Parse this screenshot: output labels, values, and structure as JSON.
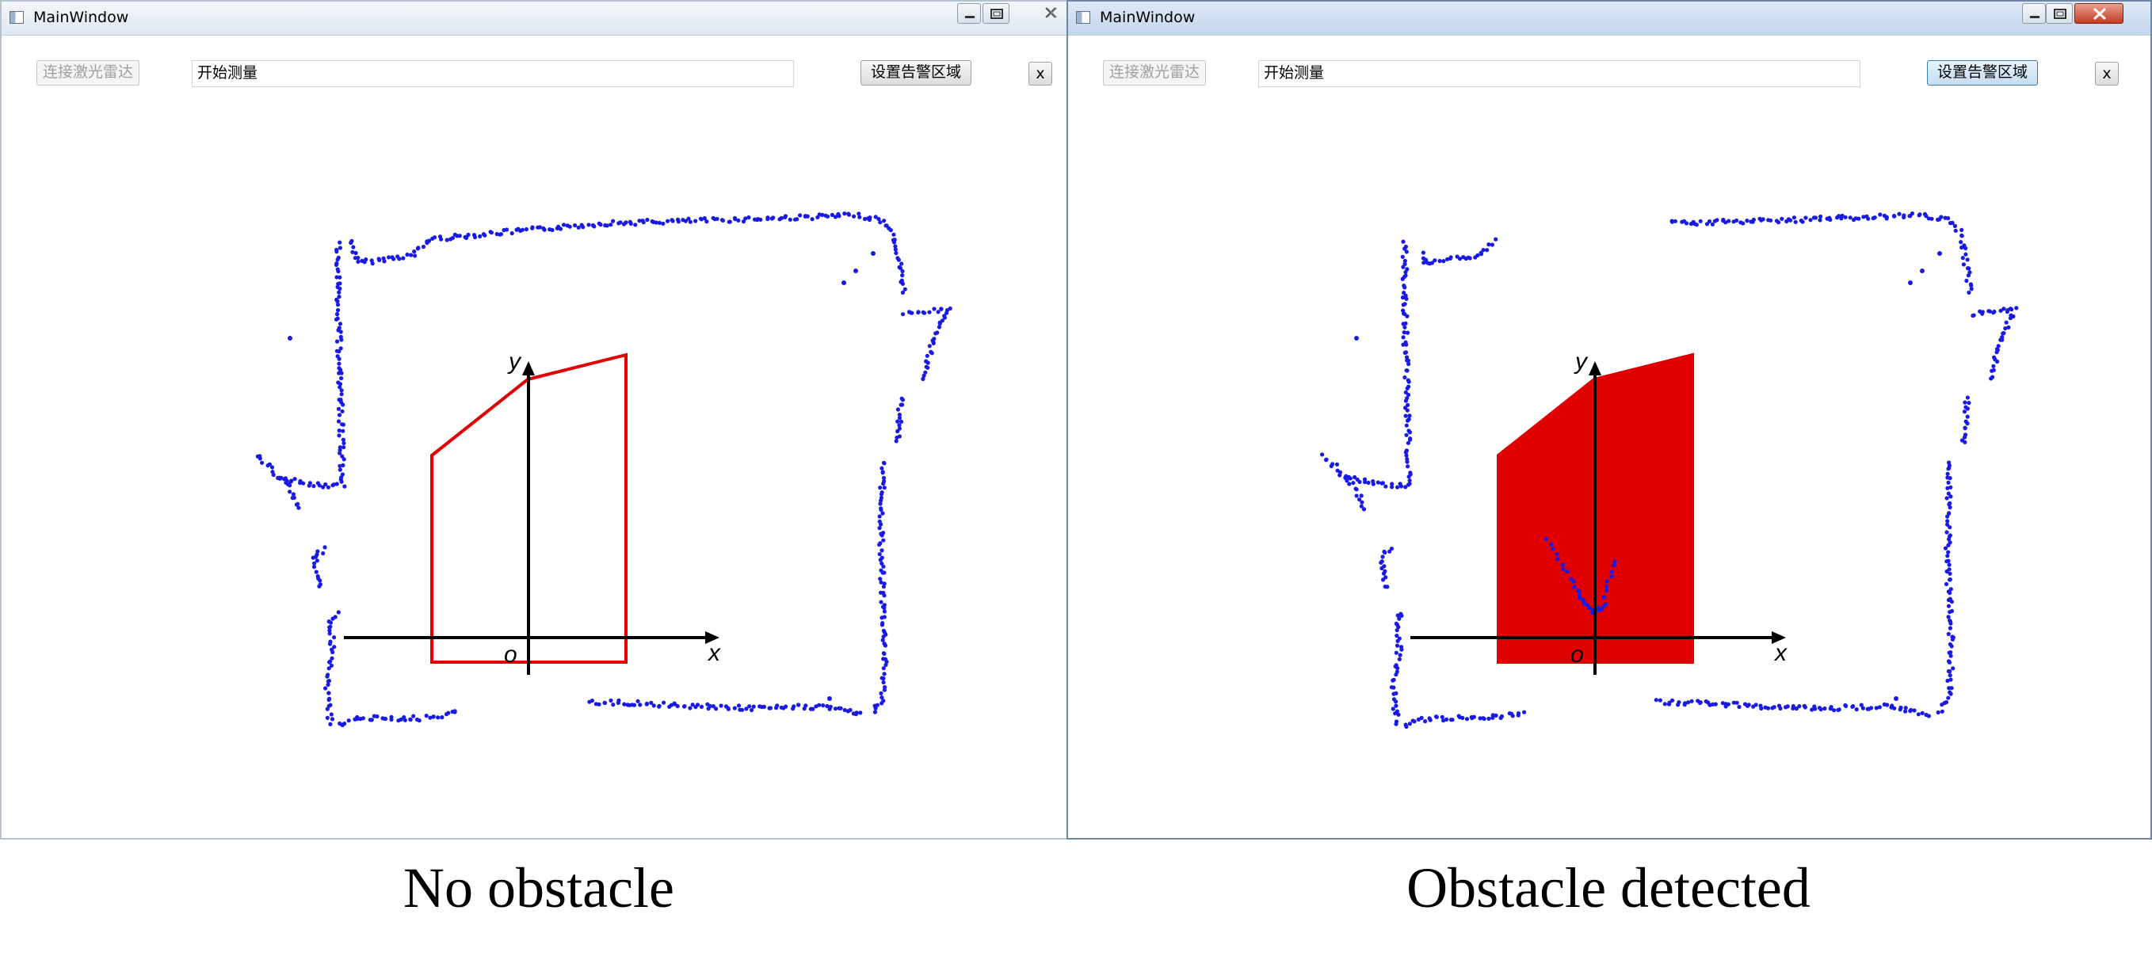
{
  "windows": [
    {
      "title": "MainWindow",
      "connect_label": "连接激光雷达",
      "measure_value": "开始测量",
      "alarm_zone_label": "设置告警区域",
      "close_label": "x",
      "state": "No obstacle",
      "zone_filled": false
    },
    {
      "title": "MainWindow",
      "connect_label": "连接激光雷达",
      "measure_value": "开始测量",
      "alarm_zone_label": "设置告警区域",
      "close_label": "x",
      "state": "Obstacle detected",
      "zone_filled": true
    }
  ],
  "axes": {
    "x_label": "x",
    "y_label": "y",
    "origin_label": "o"
  },
  "colors": {
    "scan_points": "#1a1ae6",
    "alarm_zone": "#e00000",
    "axes": "#000000"
  },
  "icons": [
    "app-icon",
    "minimize-icon",
    "maximize-icon",
    "close-icon"
  ]
}
